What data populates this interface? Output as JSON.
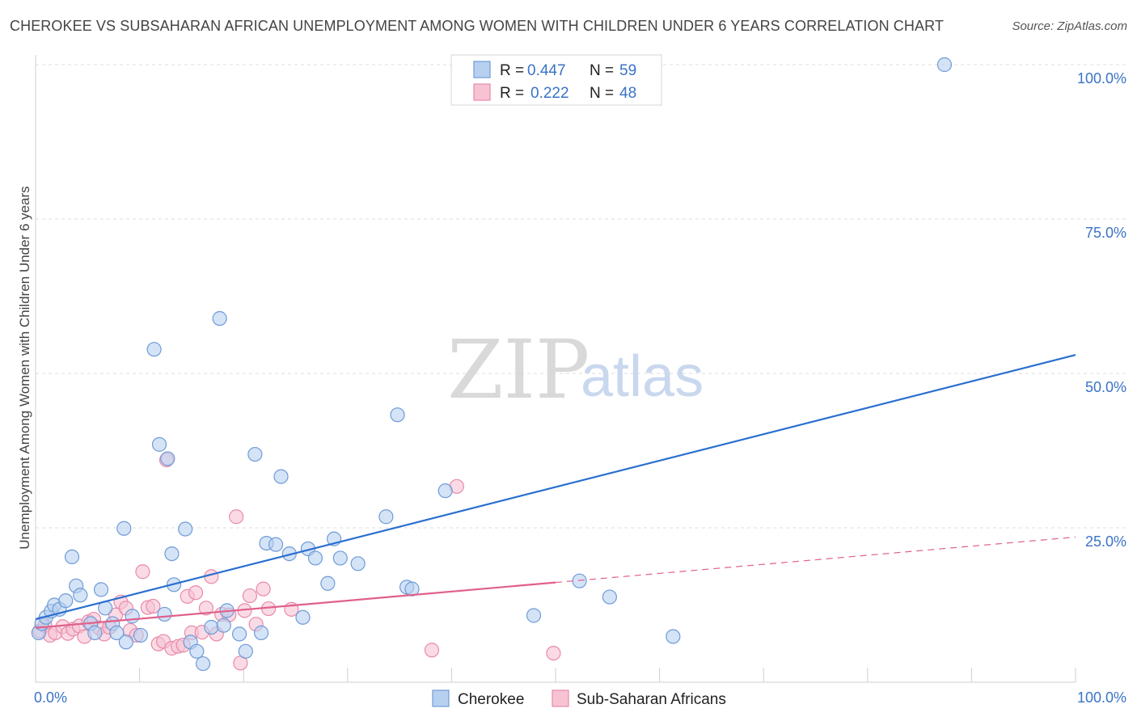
{
  "title": "CHEROKEE VS SUBSAHARAN AFRICAN UNEMPLOYMENT AMONG WOMEN WITH CHILDREN UNDER 6 YEARS CORRELATION CHART",
  "source": "Source: ZipAtlas.com",
  "watermark": {
    "zip": "ZIP",
    "atlas": "atlas"
  },
  "colors": {
    "cherokee_fill": "#b8d0f0",
    "cherokee_stroke": "#6f9bd8",
    "cherokee_line": "#2a6fcf",
    "subsaharan_fill": "#f7c3d3",
    "subsaharan_stroke": "#e98aa8",
    "subsaharan_line": "#e0608a",
    "tick_label": "#3a73c6"
  },
  "legend": {
    "rows": [
      {
        "r_label": "R =",
        "r_value": "0.447",
        "n_label": "N =",
        "n_value": "59"
      },
      {
        "r_label": "R =",
        "r_value": "0.222",
        "n_label": "N =",
        "n_value": "48"
      }
    ]
  },
  "bottom_legend": [
    "Cherokee",
    "Sub-Saharan Africans"
  ],
  "chart_data": {
    "type": "scatter",
    "title": "CHEROKEE VS SUBSAHARAN AFRICAN UNEMPLOYMENT AMONG WOMEN WITH CHILDREN UNDER 6 YEARS CORRELATION CHART",
    "xlabel": "",
    "ylabel": "Unemployment Among Women with Children Under 6 years",
    "xlim": [
      0,
      100
    ],
    "ylim": [
      0,
      100
    ],
    "x_tick_labels": [
      "0.0%",
      "100.0%"
    ],
    "y_ticks": [
      25,
      50,
      75,
      100
    ],
    "y_tick_labels": [
      "25.0%",
      "50.0%",
      "75.0%",
      "100.0%"
    ],
    "grid": true,
    "legend_position": "top-center",
    "series": [
      {
        "name": "Cherokee",
        "r": 0.447,
        "n": 59,
        "trend": {
          "x": [
            0,
            100
          ],
          "y": [
            10.2,
            53.0
          ]
        },
        "points": [
          [
            0.3,
            8.0
          ],
          [
            0.6,
            9.5
          ],
          [
            1.0,
            10.5
          ],
          [
            1.5,
            11.5
          ],
          [
            1.8,
            12.5
          ],
          [
            2.3,
            11.8
          ],
          [
            2.9,
            13.2
          ],
          [
            3.5,
            20.3
          ],
          [
            3.9,
            15.6
          ],
          [
            4.3,
            14.1
          ],
          [
            5.3,
            9.5
          ],
          [
            5.7,
            8.0
          ],
          [
            6.3,
            15.0
          ],
          [
            6.7,
            12.0
          ],
          [
            7.4,
            9.5
          ],
          [
            7.8,
            8.0
          ],
          [
            8.5,
            24.9
          ],
          [
            8.7,
            6.5
          ],
          [
            9.3,
            10.7
          ],
          [
            10.1,
            7.6
          ],
          [
            11.4,
            53.9
          ],
          [
            11.9,
            38.5
          ],
          [
            12.4,
            11.0
          ],
          [
            12.7,
            36.2
          ],
          [
            13.1,
            20.8
          ],
          [
            13.3,
            15.8
          ],
          [
            14.4,
            24.8
          ],
          [
            14.9,
            6.5
          ],
          [
            15.5,
            5.0
          ],
          [
            16.1,
            3.0
          ],
          [
            16.9,
            8.9
          ],
          [
            17.7,
            58.9
          ],
          [
            18.1,
            9.2
          ],
          [
            18.4,
            11.6
          ],
          [
            19.6,
            7.8
          ],
          [
            20.2,
            5.0
          ],
          [
            21.1,
            36.9
          ],
          [
            21.7,
            8.0
          ],
          [
            22.2,
            22.5
          ],
          [
            23.1,
            22.3
          ],
          [
            23.6,
            33.3
          ],
          [
            24.4,
            20.8
          ],
          [
            25.7,
            10.5
          ],
          [
            26.2,
            21.6
          ],
          [
            26.9,
            20.1
          ],
          [
            28.1,
            16.0
          ],
          [
            28.7,
            23.2
          ],
          [
            29.3,
            20.1
          ],
          [
            31.0,
            19.2
          ],
          [
            33.7,
            26.8
          ],
          [
            34.8,
            43.3
          ],
          [
            35.7,
            15.4
          ],
          [
            36.2,
            15.1
          ],
          [
            39.4,
            31.0
          ],
          [
            47.9,
            10.8
          ],
          [
            52.3,
            16.4
          ],
          [
            55.2,
            13.8
          ],
          [
            61.3,
            7.4
          ],
          [
            87.4,
            100.0
          ]
        ]
      },
      {
        "name": "Sub-Saharan Africans",
        "r": 0.222,
        "n": 48,
        "trend": {
          "x": [
            0,
            100
          ],
          "y": [
            8.8,
            23.5
          ],
          "solid_until": 50
        },
        "points": [
          [
            0.4,
            8.3
          ],
          [
            0.9,
            9.2
          ],
          [
            1.4,
            7.6
          ],
          [
            1.9,
            8.0
          ],
          [
            2.6,
            9.0
          ],
          [
            3.1,
            7.9
          ],
          [
            3.6,
            8.6
          ],
          [
            4.2,
            9.1
          ],
          [
            4.7,
            7.4
          ],
          [
            5.1,
            9.8
          ],
          [
            5.6,
            10.2
          ],
          [
            6.1,
            8.8
          ],
          [
            6.6,
            7.8
          ],
          [
            7.1,
            8.9
          ],
          [
            7.7,
            10.9
          ],
          [
            8.2,
            13.0
          ],
          [
            8.7,
            12.0
          ],
          [
            9.1,
            8.4
          ],
          [
            9.7,
            7.6
          ],
          [
            10.3,
            17.9
          ],
          [
            10.8,
            12.1
          ],
          [
            11.3,
            12.3
          ],
          [
            11.8,
            6.2
          ],
          [
            12.3,
            6.6
          ],
          [
            12.6,
            36.0
          ],
          [
            13.1,
            5.5
          ],
          [
            13.7,
            5.8
          ],
          [
            14.2,
            6.0
          ],
          [
            14.6,
            13.9
          ],
          [
            15.0,
            8.0
          ],
          [
            15.4,
            14.5
          ],
          [
            16.0,
            8.1
          ],
          [
            16.4,
            12.0
          ],
          [
            16.9,
            17.1
          ],
          [
            17.4,
            7.8
          ],
          [
            17.9,
            11.0
          ],
          [
            18.6,
            10.9
          ],
          [
            19.3,
            26.8
          ],
          [
            19.7,
            3.1
          ],
          [
            20.1,
            11.6
          ],
          [
            20.6,
            14.0
          ],
          [
            21.2,
            9.4
          ],
          [
            21.9,
            15.1
          ],
          [
            22.4,
            11.9
          ],
          [
            24.6,
            11.8
          ],
          [
            38.1,
            5.2
          ],
          [
            40.5,
            31.7
          ],
          [
            49.8,
            4.7
          ]
        ]
      }
    ]
  }
}
